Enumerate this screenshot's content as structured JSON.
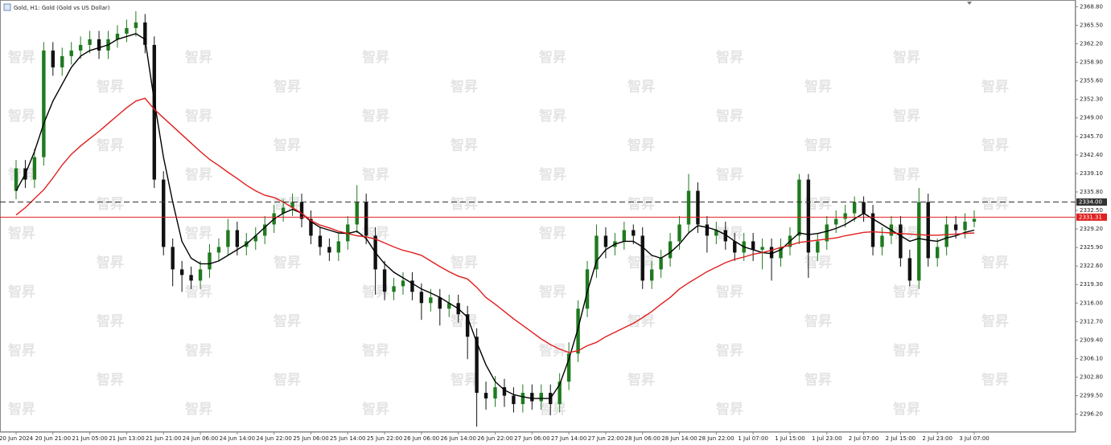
{
  "chart_data": {
    "type": "candlestick",
    "title": "Gold, H1:  Gold (Gold vs US Dollar)",
    "watermark": "智昇",
    "categories": [
      "20 Jun 2024",
      null,
      null,
      null,
      "20 Jun 21:00",
      null,
      null,
      null,
      "21 Jun 05:00",
      null,
      null,
      null,
      "21 Jun 13:00",
      null,
      null,
      null,
      "21 Jun 21:00",
      null,
      null,
      null,
      "24 Jun 06:00",
      null,
      null,
      null,
      "24 Jun 14:00",
      null,
      null,
      null,
      "24 Jun 22:00",
      null,
      null,
      null,
      "25 Jun 06:00",
      null,
      null,
      null,
      "25 Jun 14:00",
      null,
      null,
      null,
      "25 Jun 22:00",
      null,
      null,
      null,
      "26 Jun 06:00",
      null,
      null,
      null,
      "26 Jun 14:00",
      null,
      null,
      null,
      "26 Jun 22:00",
      null,
      null,
      null,
      "27 Jun 06:00",
      null,
      null,
      null,
      "27 Jun 14:00",
      null,
      null,
      null,
      "27 Jun 22:00",
      null,
      null,
      null,
      "28 Jun 06:00",
      null,
      null,
      null,
      "28 Jun 14:00",
      null,
      null,
      null,
      "28 Jun 22:00",
      null,
      null,
      null,
      "1 Jul 07:00",
      null,
      null,
      null,
      "1 Jul 15:00",
      null,
      null,
      null,
      "1 Jul 23:00",
      null,
      null,
      null,
      "2 Jul 07:00",
      null,
      null,
      null,
      "2 Jul 15:00",
      null,
      null,
      null,
      "2 Jul 23:00",
      null,
      null,
      null,
      "3 Jul 07:00"
    ],
    "open": [
      2336,
      2340,
      2338,
      2342,
      2361,
      2358,
      2360,
      2361,
      2362,
      2363,
      2361,
      2363,
      2364,
      2365,
      2366,
      2362,
      2338,
      2326,
      2322,
      2321,
      2320,
      2322,
      2325,
      2326,
      2329,
      2326,
      2327,
      2328,
      2330,
      2332,
      2333,
      2334,
      2331,
      2328,
      2326,
      2325,
      2327,
      2330,
      2334,
      2328,
      2322,
      2318,
      2319,
      2320,
      2318,
      2316,
      2317,
      2315,
      2316,
      2314,
      2310,
      2300,
      2299,
      2301,
      2299.5,
      2298,
      2300,
      2298.5,
      2300,
      2298,
      2302,
      2307,
      2315,
      2322,
      2328,
      2326,
      2327,
      2329,
      2328,
      2320,
      2322,
      2324,
      2327,
      2330,
      2336,
      2330,
      2328,
      2329,
      2327,
      2325,
      2327,
      2325.5,
      2326,
      2324,
      2326,
      2328,
      2338,
      2325,
      2327,
      2330,
      2331,
      2332,
      2334,
      2332,
      2326,
      2328,
      2330,
      2324,
      2320,
      2334,
      2324,
      2326,
      2330,
      2329,
      2330.5
    ],
    "high": [
      2341.5,
      2341.5,
      2343.5,
      2362.5,
      2362.5,
      2361.5,
      2362.5,
      2363.5,
      2364.5,
      2364.5,
      2364.5,
      2365.5,
      2366.5,
      2368,
      2367.5,
      2363.5,
      2339.5,
      2327.5,
      2323.5,
      2322.5,
      2323.5,
      2326.5,
      2327.5,
      2331,
      2330.5,
      2328.5,
      2329.5,
      2331.5,
      2333.5,
      2334.5,
      2335.5,
      2335.5,
      2332.5,
      2329.5,
      2327.5,
      2328.5,
      2331.5,
      2337,
      2335.5,
      2329.5,
      2323.5,
      2320.5,
      2321.5,
      2321.5,
      2319.5,
      2318.5,
      2318.5,
      2317.5,
      2317.5,
      2315.5,
      2311.5,
      2302,
      2303,
      2302.5,
      2301,
      2301.5,
      2301.5,
      2301.5,
      2301.5,
      2303.5,
      2309,
      2316.5,
      2323.5,
      2330,
      2329.5,
      2328.5,
      2330.5,
      2330,
      2329.5,
      2323.5,
      2325.5,
      2328.5,
      2331.5,
      2339,
      2337.5,
      2331.5,
      2330.5,
      2330.5,
      2328.5,
      2328.5,
      2328.5,
      2327.5,
      2327.5,
      2327.5,
      2329.5,
      2339,
      2339,
      2328.5,
      2331.5,
      2332.5,
      2333.5,
      2335,
      2335,
      2333.5,
      2329.5,
      2331.5,
      2331.5,
      2325.5,
      2336.5,
      2335.5,
      2327.5,
      2331.5,
      2331.5,
      2332,
      2332.5
    ],
    "low": [
      2334.5,
      2336.5,
      2336.5,
      2340.5,
      2356.5,
      2356.5,
      2358.5,
      2359.5,
      2360.5,
      2359.5,
      2359.5,
      2361.5,
      2362.5,
      2363.5,
      2360.5,
      2336.5,
      2324.5,
      2319,
      2318,
      2318.5,
      2318.5,
      2320.5,
      2323.5,
      2324.5,
      2324.5,
      2324.5,
      2325.5,
      2326.5,
      2328.5,
      2330.5,
      2331.5,
      2329.5,
      2326.5,
      2324.5,
      2323.5,
      2323.5,
      2325.5,
      2328.5,
      2326.5,
      2317.5,
      2316.5,
      2316.5,
      2317.5,
      2316.5,
      2313,
      2314.5,
      2312,
      2313.5,
      2312.5,
      2306,
      2294,
      2297,
      2297.5,
      2297.5,
      2296.5,
      2296.5,
      2297,
      2297,
      2296,
      2296.5,
      2300.5,
      2305.5,
      2313.5,
      2320.5,
      2324,
      2324.5,
      2325.5,
      2326.5,
      2318.5,
      2318.5,
      2320.5,
      2322.5,
      2325.5,
      2328.5,
      2328.5,
      2325,
      2326.5,
      2325.5,
      2323.5,
      2323.5,
      2323.5,
      2322,
      2320,
      2322.5,
      2324.5,
      2326.5,
      2320.5,
      2323.5,
      2325.5,
      2328.5,
      2329.5,
      2330.5,
      2330.5,
      2324.5,
      2324.5,
      2326.5,
      2322.5,
      2319,
      2318.5,
      2322.5,
      2322.5,
      2324.5,
      2327.5,
      2327.5,
      2329.5
    ],
    "close": [
      2340,
      2338,
      2342,
      2361,
      2358,
      2360,
      2361,
      2362,
      2363,
      2361,
      2363,
      2364,
      2365,
      2366,
      2362,
      2338,
      2326,
      2322,
      2321,
      2320,
      2322,
      2325,
      2326,
      2329,
      2326,
      2327,
      2328,
      2330,
      2332,
      2333,
      2334,
      2331,
      2328,
      2326,
      2325,
      2327,
      2330,
      2334,
      2328,
      2322,
      2318,
      2319,
      2320,
      2318,
      2316,
      2317,
      2315,
      2316,
      2314,
      2310,
      2300,
      2299,
      2301,
      2299.5,
      2298,
      2300,
      2298.5,
      2300,
      2298,
      2302,
      2307,
      2315,
      2322,
      2328,
      2326,
      2327,
      2329,
      2328,
      2320,
      2322,
      2324,
      2327,
      2330,
      2336,
      2330,
      2328,
      2329,
      2327,
      2325,
      2327,
      2325.5,
      2326,
      2324,
      2326,
      2328,
      2338,
      2325,
      2327,
      2330,
      2331,
      2332,
      2334,
      2332,
      2326,
      2328,
      2330,
      2324,
      2320,
      2334,
      2324,
      2326,
      2330,
      2329,
      2330.5,
      2331
    ],
    "bull_color": "#1f7a1f",
    "bear_color": "#111111",
    "lines": [
      {
        "color": "#000000",
        "values": [
          2336,
          2339,
          2343,
          2348,
          2352,
          2355,
          2358,
          2360,
          2361,
          2361.5,
          2362,
          2363,
          2363.5,
          2364,
          2363,
          2352,
          2342,
          2334,
          2327,
          2324,
          2323,
          2323,
          2323.5,
          2324.5,
          2325.5,
          2326.5,
          2328,
          2329.5,
          2331,
          2332,
          2332.7,
          2332,
          2330.5,
          2329.5,
          2329,
          2328.5,
          2328.4,
          2328.8,
          2327.5,
          2325,
          2323,
          2321.5,
          2320.5,
          2319.5,
          2318.5,
          2317.8,
          2317,
          2316,
          2315,
          2313.5,
          2309,
          2305,
          2302,
          2300.5,
          2299.7,
          2299.3,
          2299,
          2299,
          2299,
          2301.5,
          2306,
          2311.5,
          2318,
          2323.5,
          2325.5,
          2326.5,
          2327,
          2327,
          2326,
          2324.5,
          2324,
          2325,
          2326.5,
          2328.5,
          2329.8,
          2329.5,
          2329,
          2328.2,
          2327,
          2326,
          2325.5,
          2325,
          2324.8,
          2325.5,
          2327,
          2328.5,
          2328.2,
          2328.4,
          2328.8,
          2329.3,
          2330,
          2331,
          2332,
          2331,
          2330,
          2329,
          2328,
          2327,
          2327.5,
          2327.2,
          2327,
          2327.6,
          2328,
          2328.6,
          2329
        ]
      },
      {
        "color": "#e01e1e",
        "values": [
          2331.7,
          2333,
          2334.6,
          2336.2,
          2338.3,
          2340.6,
          2342.5,
          2344,
          2345.3,
          2346.6,
          2348,
          2349.4,
          2350.8,
          2352,
          2352.5,
          2350.5,
          2349,
          2347.5,
          2346,
          2344.5,
          2343,
          2341.6,
          2340.5,
          2339.3,
          2338.2,
          2337,
          2336,
          2335.2,
          2334.8,
          2334,
          2333,
          2332,
          2330.7,
          2329.9,
          2329.4,
          2328.8,
          2328.4,
          2328,
          2327.8,
          2327.4,
          2326.7,
          2326,
          2325.4,
          2325,
          2324.5,
          2323.5,
          2322.5,
          2321.6,
          2320.8,
          2320.3,
          2318.8,
          2317,
          2315.8,
          2314.5,
          2313.2,
          2312,
          2310.8,
          2309.6,
          2308.6,
          2307.8,
          2307.2,
          2307.5,
          2308.4,
          2309,
          2310,
          2310.8,
          2311.6,
          2312.4,
          2313.4,
          2314.5,
          2315.8,
          2317,
          2318.5,
          2319.6,
          2320.6,
          2321.6,
          2322.4,
          2323.2,
          2323.8,
          2324.2,
          2324.7,
          2325,
          2325.4,
          2325.9,
          2326.3,
          2326.8,
          2327,
          2327.2,
          2327.4,
          2327.6,
          2328,
          2328.3,
          2328.6,
          2328.7,
          2328.6,
          2328.5,
          2328.4,
          2328.3,
          2328.2,
          2328.1,
          2328.1,
          2328.2,
          2328.3,
          2328.4,
          2328.5
        ]
      }
    ],
    "levels": [
      {
        "value": 2334.0,
        "label": "2334.00",
        "color": "#333333",
        "dashed": true
      },
      {
        "value": 2331.31,
        "label": "2331.31",
        "color": "#e02020",
        "dashed": false
      }
    ],
    "ylim": [
      2293,
      2370
    ],
    "yticks": [
      {
        "value": 2368.8,
        "label": "2368.80"
      },
      {
        "value": 2365.5,
        "label": "2365.50"
      },
      {
        "value": 2362.2,
        "label": "2362.20"
      },
      {
        "value": 2358.9,
        "label": "2358.90"
      },
      {
        "value": 2355.6,
        "label": "2355.60"
      },
      {
        "value": 2352.3,
        "label": "2352.30"
      },
      {
        "value": 2349.0,
        "label": "2349.00"
      },
      {
        "value": 2345.7,
        "label": "2345.70"
      },
      {
        "value": 2342.4,
        "label": "2342.40"
      },
      {
        "value": 2339.1,
        "label": "2339.10"
      },
      {
        "value": 2335.8,
        "label": "2335.80"
      },
      {
        "value": 2332.5,
        "label": "2332.50"
      },
      {
        "value": 2329.2,
        "label": "2329.20"
      },
      {
        "value": 2325.9,
        "label": "2325.90"
      },
      {
        "value": 2322.6,
        "label": "2322.60"
      },
      {
        "value": 2319.3,
        "label": "2319.30"
      },
      {
        "value": 2316.0,
        "label": "2316.00"
      },
      {
        "value": 2312.7,
        "label": "2312.70"
      },
      {
        "value": 2309.4,
        "label": "2309.40"
      },
      {
        "value": 2306.1,
        "label": "2306.10"
      },
      {
        "value": 2302.8,
        "label": "2302.80"
      },
      {
        "value": 2299.5,
        "label": "2299.50"
      },
      {
        "value": 2296.2,
        "label": "2296.20"
      }
    ],
    "grid": false
  }
}
